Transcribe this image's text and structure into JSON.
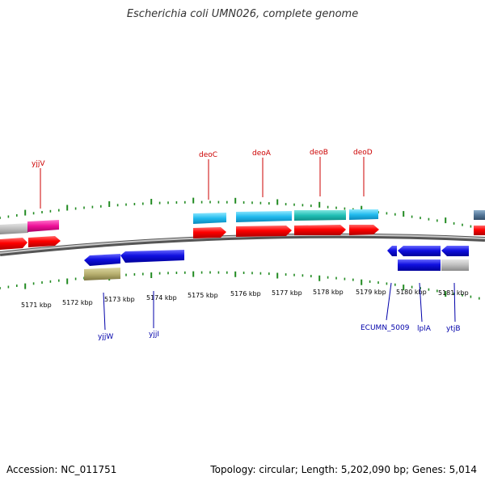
{
  "title": "Escherichia coli UMN026, complete genome",
  "footer": {
    "accession": "Accession: NC_011751",
    "topology": "Topology: circular; Length: 5,202,090 bp; Genes: 5,014"
  },
  "scale_labels": [
    "5171 kbp",
    "5172 kbp",
    "5173 kbp",
    "5174 kbp",
    "5175 kbp",
    "5176 kbp",
    "5177 kbp",
    "5178 kbp",
    "5179 kbp",
    "5180 kbp",
    "5181 kbp"
  ],
  "genes_top": [
    "yjjV",
    "deoC",
    "deoA",
    "deoB",
    "deoD"
  ],
  "genes_bottom": [
    "yjjW",
    "yjjI",
    "ECUMN_5009",
    "lplA",
    "ytjB"
  ],
  "colors": {
    "backbone": "#888888",
    "tick": "#228B22",
    "cds_forward": "#ff0000",
    "cds_reverse": "#1010dd",
    "label_top": "#cc0000",
    "label_bottom": "#0000aa"
  }
}
